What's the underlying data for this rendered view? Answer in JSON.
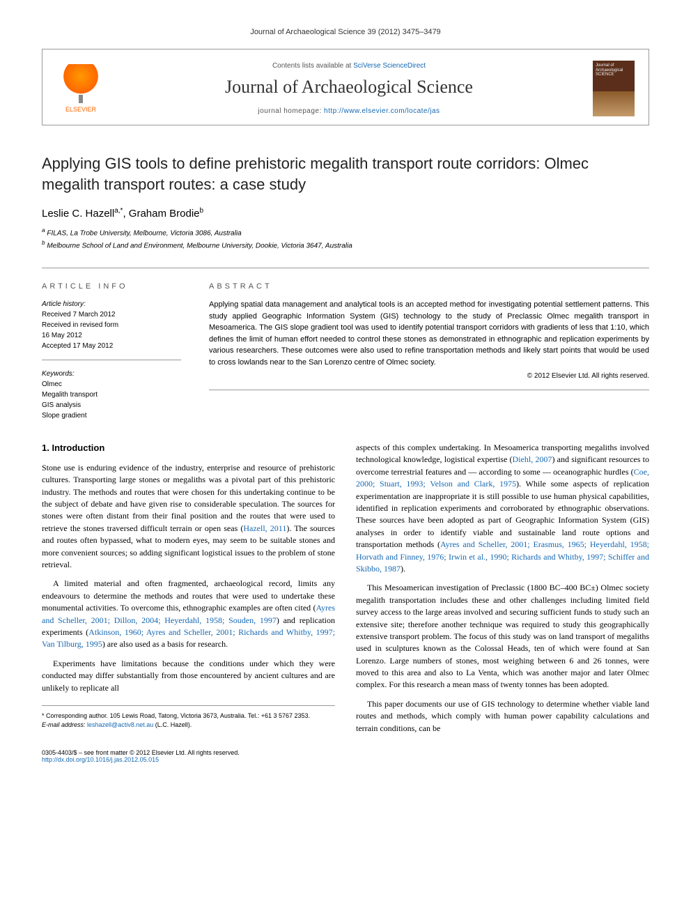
{
  "journal_ref": "Journal of Archaeological Science 39 (2012) 3475–3479",
  "header": {
    "publisher": "ELSEVIER",
    "contents_prefix": "Contents lists available at ",
    "contents_link": "SciVerse ScienceDirect",
    "journal_name": "Journal of Archaeological Science",
    "homepage_prefix": "journal homepage: ",
    "homepage_url": "http://www.elsevier.com/locate/jas",
    "cover_label_top": "Journal of",
    "cover_label_mid": "Archaeological",
    "cover_label_bot": "SCIENCE"
  },
  "title": "Applying GIS tools to define prehistoric megalith transport route corridors: Olmec megalith transport routes: a case study",
  "authors": {
    "a1_name": "Leslie C. Hazell",
    "a1_sup": "a,*",
    "a2_name": "Graham Brodie",
    "a2_sup": "b"
  },
  "affiliations": {
    "a": "FILAS, La Trobe University, Melbourne, Victoria 3086, Australia",
    "b": "Melbourne School of Land and Environment, Melbourne University, Dookie, Victoria 3647, Australia"
  },
  "article_info": {
    "label": "ARTICLE INFO",
    "history_head": "Article history:",
    "received": "Received 7 March 2012",
    "revised": "Received in revised form",
    "revised_date": "16 May 2012",
    "accepted": "Accepted 17 May 2012",
    "keywords_head": "Keywords:",
    "kw1": "Olmec",
    "kw2": "Megalith transport",
    "kw3": "GIS analysis",
    "kw4": "Slope gradient"
  },
  "abstract": {
    "label": "ABSTRACT",
    "text": "Applying spatial data management and analytical tools is an accepted method for investigating potential settlement patterns. This study applied Geographic Information System (GIS) technology to the study of Preclassic Olmec megalith transport in Mesoamerica. The GIS slope gradient tool was used to identify potential transport corridors with gradients of less that 1:10, which defines the limit of human effort needed to control these stones as demonstrated in ethnographic and replication experiments by various researchers. These outcomes were also used to refine transportation methods and likely start points that would be used to cross lowlands near to the San Lorenzo centre of Olmec society.",
    "copyright": "© 2012 Elsevier Ltd. All rights reserved."
  },
  "body": {
    "h1": "1. Introduction",
    "p1": "Stone use is enduring evidence of the industry, enterprise and resource of prehistoric cultures. Transporting large stones or megaliths was a pivotal part of this prehistoric industry. The methods and routes that were chosen for this undertaking continue to be the subject of debate and have given rise to considerable speculation. The sources for stones were often distant from their final position and the routes that were used to retrieve the stones traversed difficult terrain or open seas (",
    "p1_link1": "Hazell, 2011",
    "p1b": "). The sources and routes often bypassed, what to modern eyes, may seem to be suitable stones and more convenient sources; so adding significant logistical issues to the problem of stone retrieval.",
    "p2": "A limited material and often fragmented, archaeological record, limits any endeavours to determine the methods and routes that were used to undertake these monumental activities. To overcome this, ethnographic examples are often cited (",
    "p2_links": "Ayres and Scheller, 2001; Dillon, 2004; Heyerdahl, 1958; Souden, 1997",
    "p2b": ") and replication experiments (",
    "p2_links2": "Atkinson, 1960; Ayres and Scheller, 2001; Richards and Whitby, 1997; Van Tilburg, 1995",
    "p2c": ") are also used as a basis for research.",
    "p3": "Experiments have limitations because the conditions under which they were conducted may differ substantially from those encountered by ancient cultures and are unlikely to replicate all",
    "p4": "aspects of this complex undertaking. In Mesoamerica transporting megaliths involved technological knowledge, logistical expertise (",
    "p4_link1": "Diehl, 2007",
    "p4b": ") and significant resources to overcome terrestrial features and — according to some — oceanographic hurdles (",
    "p4_links2": "Coe, 2000; Stuart, 1993; Velson and Clark, 1975",
    "p4c": "). While some aspects of replication experimentation are inappropriate it is still possible to use human physical capabilities, identified in replication experiments and corroborated by ethnographic observations. These sources have been adopted as part of Geographic Information System (GIS) analyses in order to identify viable and sustainable land route options and transportation methods (",
    "p4_links3": "Ayres and Scheller, 2001; Erasmus, 1965; Heyerdahl, 1958; Horvath and Finney, 1976; Irwin et al., 1990; Richards and Whitby, 1997; Schiffer and Skibbo, 1987",
    "p4d": ").",
    "p5": "This Mesoamerican investigation of Preclassic (1800 BC–400 BC±) Olmec society megalith transportation includes these and other challenges including limited field survey access to the large areas involved and securing sufficient funds to study such an extensive site; therefore another technique was required to study this geographically extensive transport problem. The focus of this study was on land transport of megaliths used in sculptures known as the Colossal Heads, ten of which were found at San Lorenzo. Large numbers of stones, most weighing between 6 and 26 tonnes, were moved to this area and also to La Venta, which was another major and later Olmec complex. For this research a mean mass of twenty tonnes has been adopted.",
    "p6": "This paper documents our use of GIS technology to determine whether viable land routes and methods, which comply with human power capability calculations and terrain conditions, can be"
  },
  "footnotes": {
    "corr": "* Corresponding author. 105 Lewis Road, Tatong, Victoria 3673, Australia. Tel.: +61 3 5767 2353.",
    "email_label": "E-mail address: ",
    "email": "leshazell@activ8.net.au",
    "email_suffix": " (L.C. Hazell)."
  },
  "footer": {
    "left1": "0305-4403/$ – see front matter © 2012 Elsevier Ltd. All rights reserved.",
    "left2_url": "http://dx.doi.org/10.1016/j.jas.2012.05.015"
  },
  "colors": {
    "link": "#1568b3",
    "rule": "#999999",
    "publisher": "#f60"
  }
}
